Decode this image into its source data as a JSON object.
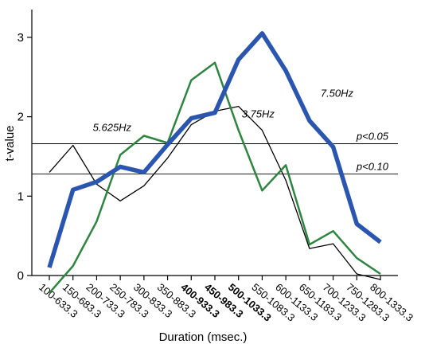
{
  "chart_data": {
    "type": "line",
    "categories": [
      "100-633.3",
      "150-683.3",
      "200-733.3",
      "250-783.3",
      "300-833.3",
      "350-883.3",
      "400-933.3",
      "450-983.3",
      "500-1033.3",
      "550-1083.3",
      "600-1133.3",
      "650-1183.3",
      "700-1233.3",
      "750-1283.3",
      "800-1333.3"
    ],
    "bold_categories": [
      "400-933.3",
      "450-983.3",
      "500-1033.3"
    ],
    "series": [
      {
        "name": "7.50Hz",
        "color": "#2a56b0",
        "values": [
          0.1,
          1.08,
          1.18,
          1.37,
          1.3,
          1.65,
          1.98,
          2.05,
          2.72,
          3.05,
          2.58,
          1.95,
          1.62,
          0.65,
          0.42
        ]
      },
      {
        "name": "5.625Hz",
        "color": "#2e8540",
        "values": [
          -0.22,
          0.12,
          0.68,
          1.52,
          1.76,
          1.67,
          2.46,
          2.68,
          1.83,
          1.07,
          1.39,
          0.39,
          0.56,
          0.22,
          0.02
        ]
      },
      {
        "name": "3.75Hz",
        "color": "#000000",
        "values": [
          1.3,
          1.64,
          1.15,
          0.94,
          1.13,
          1.48,
          1.9,
          2.07,
          2.13,
          1.83,
          1.2,
          0.34,
          0.4,
          0.02,
          -0.05
        ]
      }
    ],
    "thresholds": [
      {
        "label": "p<0.05",
        "value": 1.66
      },
      {
        "label": "p<0.10",
        "value": 1.28
      }
    ],
    "xlabel": "Duration (msec.)",
    "ylabel": "t-value",
    "ylim": [
      0,
      3.3
    ],
    "yticks": [
      "0",
      "1",
      "2",
      "3"
    ],
    "annotations": [
      {
        "text": "5.625Hz",
        "series": 1,
        "index": 4
      },
      {
        "text": "3.75Hz",
        "series": 2,
        "index": 8
      },
      {
        "text": "7.50Hz",
        "series": 0,
        "index": 11
      }
    ],
    "grid": false,
    "legend": "none"
  }
}
